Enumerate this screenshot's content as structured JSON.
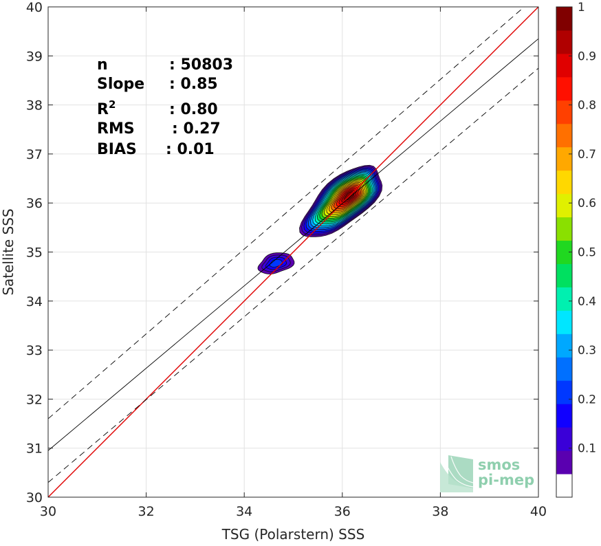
{
  "chart_data": {
    "type": "contour",
    "xlabel": "TSG (Polarstern) SSS",
    "ylabel": "Satellite SSS",
    "xlim": [
      30,
      40
    ],
    "ylim": [
      30,
      40
    ],
    "xticks": [
      30,
      32,
      34,
      36,
      38,
      40
    ],
    "yticks": [
      30,
      31,
      32,
      33,
      34,
      35,
      36,
      37,
      38,
      39,
      40
    ],
    "grid": true,
    "stats": [
      {
        "label": "n",
        "value": ": 50803"
      },
      {
        "label": "Slope",
        "value": ": 0.85"
      },
      {
        "label": "R",
        "sup": "2",
        "value": ": 0.80"
      },
      {
        "label": "RMS",
        "value": ": 0.27"
      },
      {
        "label": "BIAS",
        "value": ": 0.01"
      }
    ],
    "lines": [
      {
        "kind": "identity",
        "color": "#e00000",
        "points": [
          [
            30,
            30
          ],
          [
            40,
            40
          ]
        ]
      },
      {
        "kind": "regression",
        "color": "#000000",
        "points": [
          [
            30,
            30.95
          ],
          [
            40,
            39.35
          ]
        ]
      },
      {
        "kind": "regression-plus-2rms",
        "color": "#000000",
        "dash": true,
        "points": [
          [
            30,
            31.6
          ],
          [
            40,
            40.25
          ]
        ]
      },
      {
        "kind": "regression-minus-2rms",
        "color": "#000000",
        "dash": true,
        "points": [
          [
            30,
            30.3
          ],
          [
            40,
            38.75
          ]
        ]
      }
    ],
    "density_peaks": [
      {
        "x": 36.15,
        "y": 36.15,
        "peak": 1.0
      },
      {
        "x": 34.65,
        "y": 34.77,
        "peak": 0.18
      }
    ],
    "colorbar": {
      "ticks": [
        0.1,
        0.2,
        0.3,
        0.4,
        0.5,
        0.6,
        0.7,
        0.8,
        0.9,
        1
      ],
      "tick_labels": [
        "0.1",
        "0.2",
        "0.3",
        "0.4",
        "0.5",
        "0.6",
        "0.7",
        "0.8",
        "0.9",
        "1"
      ],
      "range": [
        0,
        1
      ],
      "colors": [
        "#ffffff",
        "#5a00b0",
        "#3a00d8",
        "#1000ff",
        "#0038ff",
        "#0070ff",
        "#00a8ff",
        "#00e6ff",
        "#00f0b0",
        "#00e060",
        "#20d820",
        "#8ae000",
        "#e0f000",
        "#ffd800",
        "#ffa800",
        "#ff7000",
        "#ff4000",
        "#ff1000",
        "#e00000",
        "#b00000",
        "#800000"
      ]
    },
    "logo": {
      "line1": "smos",
      "line2": "pi-mep"
    }
  }
}
